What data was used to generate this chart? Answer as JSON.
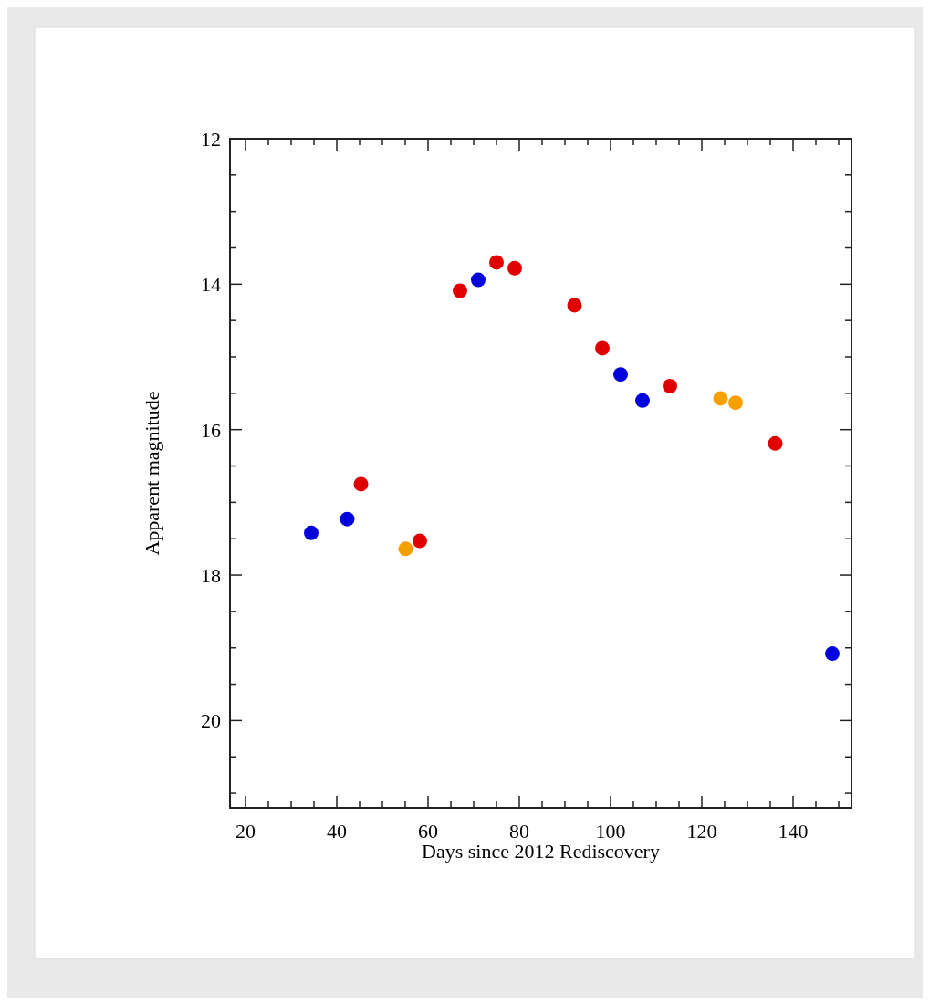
{
  "chart_data": {
    "type": "scatter",
    "xlabel": "Days since 2012 Rediscovery",
    "ylabel": "Apparent magnitude",
    "marker": "circle",
    "grid": false,
    "xlim": [
      16.6,
      152.8
    ],
    "ylim": [
      21.2,
      12
    ],
    "xticks": [
      20,
      {
        "value": 25,
        "label": null
      },
      {
        "value": 30,
        "label": null
      },
      {
        "value": 35,
        "label": null
      },
      40,
      {
        "value": 45,
        "label": null
      },
      {
        "value": 50,
        "label": null
      },
      {
        "value": 55,
        "label": null
      },
      60,
      {
        "value": 65,
        "label": null
      },
      {
        "value": 70,
        "label": null
      },
      {
        "value": 75,
        "label": null
      },
      80,
      {
        "value": 85,
        "label": null
      },
      {
        "value": 90,
        "label": null
      },
      {
        "value": 95,
        "label": null
      },
      100,
      {
        "value": 105,
        "label": null
      },
      {
        "value": 110,
        "label": null
      },
      {
        "value": 115,
        "label": null
      },
      120,
      {
        "value": 125,
        "label": null
      },
      {
        "value": 130,
        "label": null
      },
      {
        "value": 135,
        "label": null
      },
      140,
      {
        "value": 145,
        "label": null
      },
      {
        "value": 150,
        "label": null
      }
    ],
    "yticks": [
      12,
      {
        "value": 12.5,
        "label": null
      },
      {
        "value": 13,
        "label": null
      },
      {
        "value": 13.5,
        "label": null
      },
      14,
      {
        "value": 14.5,
        "label": null
      },
      {
        "value": 15,
        "label": null
      },
      {
        "value": 15.5,
        "label": null
      },
      16,
      {
        "value": 16.5,
        "label": null
      },
      {
        "value": 17,
        "label": null
      },
      {
        "value": 17.5,
        "label": null
      },
      18,
      {
        "value": 18.5,
        "label": null
      },
      {
        "value": 19,
        "label": null
      },
      {
        "value": 19.5,
        "label": null
      },
      20,
      {
        "value": 20.5,
        "label": null
      },
      {
        "value": 21,
        "label": null
      }
    ],
    "series": [
      {
        "color": "#e00000",
        "x": [
          45.3,
          58.2,
          67,
          75,
          79,
          92.1,
          98.2,
          113,
          136.1
        ],
        "values": [
          16.75,
          17.53,
          14.09,
          13.7,
          13.78,
          14.29,
          14.88,
          15.4,
          16.19
        ]
      },
      {
        "color": "#0000dd",
        "x": [
          34.4,
          42.3,
          71,
          102.2,
          107,
          148.6
        ],
        "values": [
          17.42,
          17.23,
          13.94,
          15.24,
          15.6,
          19.08
        ]
      },
      {
        "color": "#f5a000",
        "x": [
          55.1,
          124.1,
          127.4
        ],
        "values": [
          17.64,
          15.57,
          15.63
        ]
      }
    ]
  }
}
